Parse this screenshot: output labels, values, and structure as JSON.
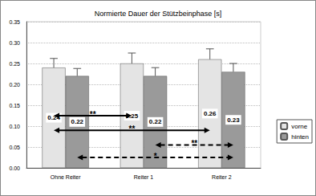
{
  "chart_data": {
    "type": "bar",
    "title": "Normierte Dauer der Stützbeinphase [s]",
    "categories": [
      "Ohne Reiter",
      "Reiter 1",
      "Reiter 2"
    ],
    "series": [
      {
        "name": "vorne",
        "color": "#e4e4e4",
        "values": [
          0.24,
          0.25,
          0.26
        ],
        "errors": [
          0.022,
          0.025,
          0.025
        ]
      },
      {
        "name": "hinten",
        "color": "#9a9a9a",
        "values": [
          0.22,
          0.22,
          0.23
        ],
        "errors": [
          0.018,
          0.02,
          0.02
        ]
      }
    ],
    "ylim": [
      0,
      0.35
    ],
    "yticks": [
      {
        "value": 0,
        "label": "0.00"
      },
      {
        "value": 0.05,
        "label": "0.05"
      },
      {
        "value": 0.1,
        "label": "0.10"
      },
      {
        "value": 0.15,
        "label": "0.15"
      },
      {
        "value": 0.2,
        "label": "0.20"
      },
      {
        "value": 0.25,
        "label": "0.25"
      },
      {
        "value": 0.3,
        "label": "0.30"
      },
      {
        "value": 0.35,
        "label": "0.35"
      }
    ],
    "grid": true,
    "legend": "right",
    "data_labels": true,
    "annotations": [
      {
        "text": "**",
        "from": {
          "category": 0,
          "series": "vorne"
        },
        "to": {
          "category": 1,
          "series": "vorne"
        },
        "line_style": "solid"
      },
      {
        "text": "**",
        "from": {
          "category": 0,
          "series": "vorne"
        },
        "to": {
          "category": 2,
          "series": "vorne"
        },
        "line_style": "solid"
      },
      {
        "text": "**",
        "from": {
          "category": 1,
          "series": "hinten"
        },
        "to": {
          "category": 2,
          "series": "hinten"
        },
        "line_style": "dashed"
      },
      {
        "text": "*",
        "from": {
          "category": 0,
          "series": "hinten"
        },
        "to": {
          "category": 2,
          "series": "hinten"
        },
        "line_style": "dashed"
      }
    ]
  }
}
